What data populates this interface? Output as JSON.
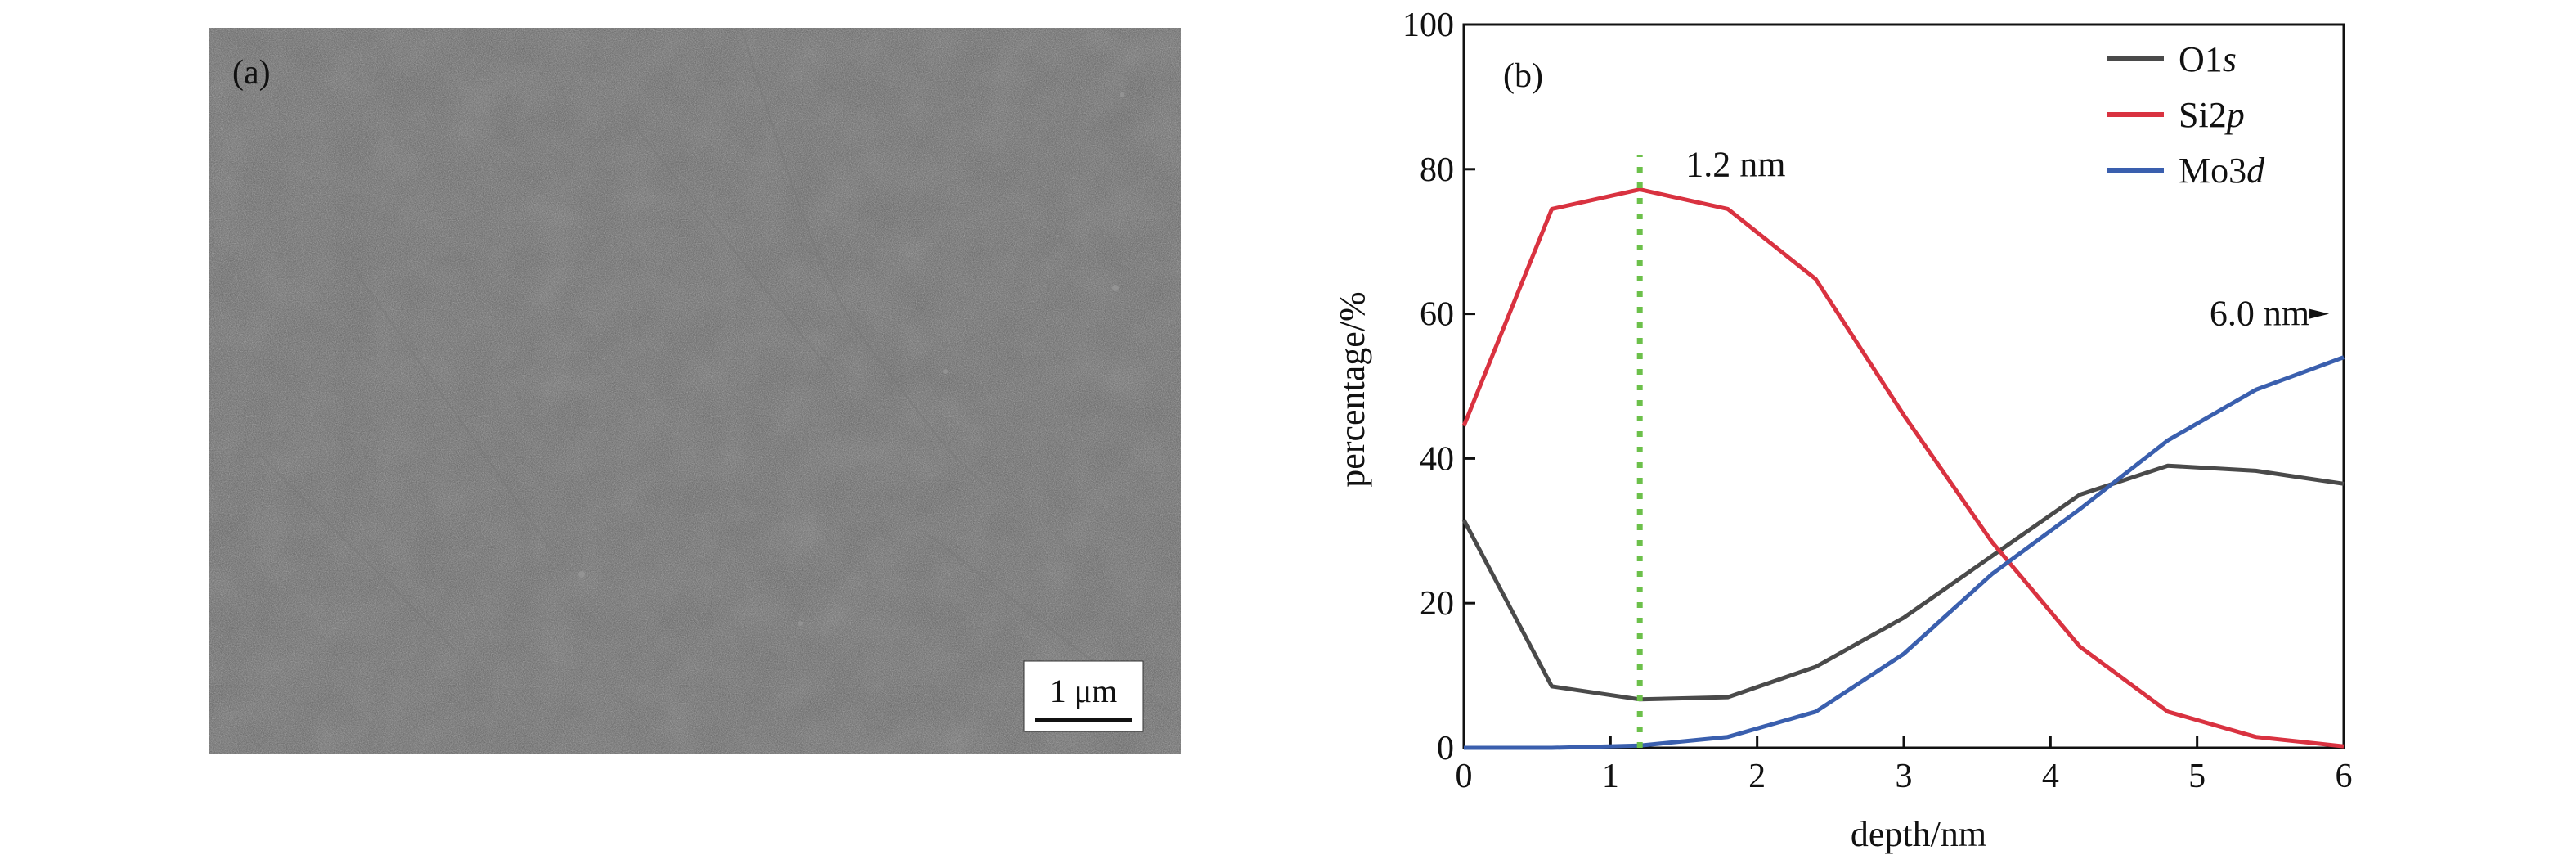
{
  "figure": {
    "panel_a": {
      "label": "(a)",
      "scale_bar_label": "1 μm"
    },
    "panel_b": {
      "label": "(b)"
    }
  },
  "chart_data": {
    "type": "line",
    "xlabel": "depth/nm",
    "ylabel": "percentage/%",
    "xlim": [
      0,
      6
    ],
    "ylim": [
      0,
      100
    ],
    "x_ticks": [
      0,
      1,
      2,
      3,
      4,
      5,
      6
    ],
    "y_ticks": [
      0,
      20,
      40,
      60,
      80,
      100
    ],
    "grid": false,
    "legend_position": "top-right",
    "series": [
      {
        "name": "O1s",
        "name_base": "O1",
        "name_italic": "s",
        "color": "#4a4a4a",
        "x": [
          0,
          0.6,
          1.2,
          1.8,
          2.4,
          3.0,
          3.6,
          4.2,
          4.8,
          5.4,
          6.0
        ],
        "values": [
          31.5,
          8.5,
          6.7,
          7.0,
          11.2,
          18.0,
          26.5,
          35.0,
          39.0,
          38.3,
          36.5
        ]
      },
      {
        "name": "Si2p",
        "name_base": "Si2",
        "name_italic": "p",
        "color": "#d93240",
        "x": [
          0,
          0.6,
          1.2,
          1.8,
          2.4,
          3.0,
          3.6,
          4.2,
          4.8,
          5.4,
          6.0
        ],
        "values": [
          44.5,
          74.5,
          77.2,
          74.5,
          64.8,
          46.0,
          28.5,
          14.0,
          5.0,
          1.5,
          0.2
        ]
      },
      {
        "name": "Mo3d",
        "name_base": "Mo3",
        "name_italic": "d",
        "color": "#3a5fae",
        "x": [
          0,
          0.6,
          1.2,
          1.8,
          2.4,
          3.0,
          3.6,
          4.2,
          4.8,
          5.4,
          6.0
        ],
        "values": [
          0.0,
          0.0,
          0.3,
          1.5,
          5.0,
          13.0,
          24.0,
          33.0,
          42.5,
          49.5,
          54.0
        ]
      }
    ],
    "vertical_marker": {
      "x": 1.2,
      "color": "#6cc04a",
      "label": "1.2 nm"
    },
    "annotations": [
      {
        "text": "6.0 nm",
        "x": 5.9,
        "y": 60,
        "arrow": true
      }
    ]
  }
}
